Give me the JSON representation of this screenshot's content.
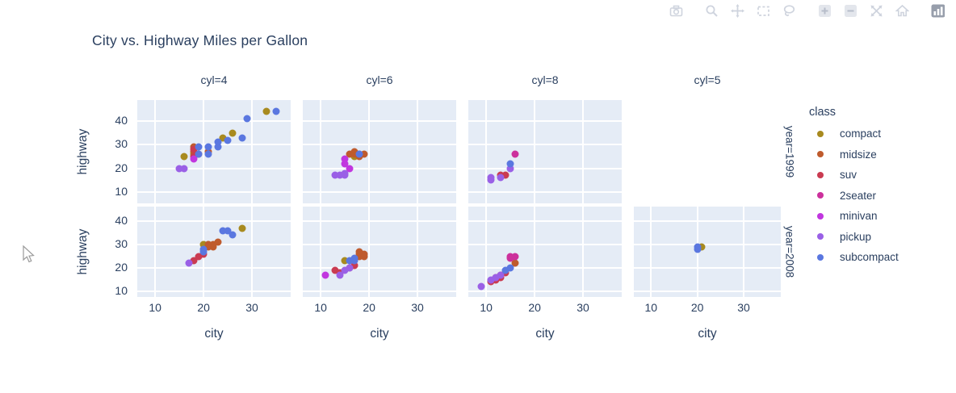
{
  "title": "City vs. Highway Miles per Gallon",
  "modebar": {
    "icons": [
      {
        "name": "camera-icon",
        "group": 0
      },
      {
        "name": "zoom-icon",
        "group": 1
      },
      {
        "name": "pan-icon",
        "group": 1
      },
      {
        "name": "box-select-icon",
        "group": 1
      },
      {
        "name": "lasso-select-icon",
        "group": 1
      },
      {
        "name": "zoom-in-icon",
        "group": 2
      },
      {
        "name": "zoom-out-icon",
        "group": 2
      },
      {
        "name": "autoscale-icon",
        "group": 2
      },
      {
        "name": "reset-axes-home-icon",
        "group": 2
      },
      {
        "name": "plotly-logo-icon",
        "group": 3
      }
    ]
  },
  "legend": {
    "title": "class",
    "items": [
      {
        "label": "compact",
        "color": "#a88a1f"
      },
      {
        "label": "midsize",
        "color": "#bf5b2d"
      },
      {
        "label": "suv",
        "color": "#ca3b51"
      },
      {
        "label": "2seater",
        "color": "#cc309c"
      },
      {
        "label": "minivan",
        "color": "#c136df"
      },
      {
        "label": "pickup",
        "color": "#9a60e6"
      },
      {
        "label": "subcompact",
        "color": "#5a77e0"
      }
    ]
  },
  "chart_data": {
    "type": "scatter",
    "title": "City vs. Highway Miles per Gallon",
    "xlabel": "city",
    "ylabel": "highway",
    "legend_title": "class",
    "legend_position": "right",
    "grid": true,
    "plot_bgcolor": "#e5ecf6",
    "text_color": "#2a3f5f",
    "x_ticks": [
      10,
      20,
      30
    ],
    "y_ticks": [
      10,
      20,
      30,
      40
    ],
    "x_range": [
      6.3,
      38
    ],
    "y_range": [
      5,
      49
    ],
    "facet_cols": [
      "cyl=4",
      "cyl=6",
      "cyl=8",
      "cyl=5"
    ],
    "facet_rows": [
      "year=1999",
      "year=2008"
    ],
    "classes": [
      "compact",
      "midsize",
      "suv",
      "2seater",
      "minivan",
      "pickup",
      "subcompact"
    ],
    "colors": {
      "compact": "#a88a1f",
      "midsize": "#bf5b2d",
      "suv": "#ca3b51",
      "2seater": "#cc309c",
      "minivan": "#c136df",
      "pickup": "#9a60e6",
      "subcompact": "#5a77e0"
    },
    "panels": [
      {
        "col": 0,
        "row": 0,
        "blank": false,
        "points": [
          [
            15,
            20,
            "pickup"
          ],
          [
            16,
            20,
            "pickup"
          ],
          [
            16,
            25,
            "compact"
          ],
          [
            18,
            26,
            "compact"
          ],
          [
            24,
            33,
            "compact"
          ],
          [
            26,
            35,
            "compact"
          ],
          [
            33,
            44,
            "compact"
          ],
          [
            18,
            29,
            "midsize"
          ],
          [
            18,
            27,
            "midsize"
          ],
          [
            19,
            26,
            "midsize"
          ],
          [
            21,
            27,
            "midsize"
          ],
          [
            18,
            28,
            "suv"
          ],
          [
            18,
            25,
            "suv"
          ],
          [
            18,
            24,
            "minivan"
          ],
          [
            19,
            29,
            "subcompact"
          ],
          [
            19,
            26,
            "subcompact"
          ],
          [
            21,
            29,
            "subcompact"
          ],
          [
            21,
            26,
            "subcompact"
          ],
          [
            23,
            31,
            "subcompact"
          ],
          [
            23,
            29,
            "subcompact"
          ],
          [
            25,
            32,
            "subcompact"
          ],
          [
            28,
            33,
            "subcompact"
          ],
          [
            29,
            41,
            "subcompact"
          ],
          [
            35,
            44,
            "subcompact"
          ]
        ]
      },
      {
        "col": 1,
        "row": 0,
        "blank": false,
        "points": [
          [
            13,
            17,
            "pickup"
          ],
          [
            14,
            17,
            "pickup"
          ],
          [
            15,
            17,
            "pickup"
          ],
          [
            15,
            18,
            "pickup"
          ],
          [
            15,
            22,
            "minivan"
          ],
          [
            15,
            24,
            "minivan"
          ],
          [
            16,
            20,
            "minivan"
          ],
          [
            16,
            26,
            "midsize"
          ],
          [
            17,
            27,
            "midsize"
          ],
          [
            17,
            26,
            "midsize"
          ],
          [
            18,
            26,
            "midsize"
          ],
          [
            19,
            26,
            "midsize"
          ],
          [
            18,
            25,
            "midsize"
          ],
          [
            17,
            25,
            "compact"
          ],
          [
            18,
            26,
            "subcompact"
          ]
        ]
      },
      {
        "col": 2,
        "row": 0,
        "blank": false,
        "points": [
          [
            11,
            15,
            "pickup"
          ],
          [
            11,
            16,
            "pickup"
          ],
          [
            13,
            16,
            "pickup"
          ],
          [
            15,
            20,
            "pickup"
          ],
          [
            13,
            17,
            "suv"
          ],
          [
            14,
            17,
            "suv"
          ],
          [
            15,
            22,
            "subcompact"
          ],
          [
            16,
            26,
            "2seater"
          ]
        ]
      },
      {
        "col": 3,
        "row": 0,
        "blank": true,
        "points": []
      },
      {
        "col": 0,
        "row": 1,
        "blank": false,
        "points": [
          [
            17,
            22,
            "pickup"
          ],
          [
            18,
            23,
            "suv"
          ],
          [
            19,
            25,
            "suv"
          ],
          [
            20,
            26,
            "suv"
          ],
          [
            20,
            30,
            "compact"
          ],
          [
            21,
            30,
            "compact"
          ],
          [
            28,
            37,
            "compact"
          ],
          [
            21,
            29,
            "midsize"
          ],
          [
            22,
            29,
            "midsize"
          ],
          [
            22,
            30,
            "midsize"
          ],
          [
            23,
            31,
            "midsize"
          ],
          [
            21,
            30,
            "midsize"
          ],
          [
            20,
            27,
            "subcompact"
          ],
          [
            20,
            28,
            "subcompact"
          ],
          [
            24,
            36,
            "subcompact"
          ],
          [
            25,
            36,
            "subcompact"
          ],
          [
            26,
            34,
            "subcompact"
          ]
        ]
      },
      {
        "col": 1,
        "row": 1,
        "blank": false,
        "points": [
          [
            11,
            17,
            "minivan"
          ],
          [
            13,
            19,
            "suv"
          ],
          [
            14,
            18,
            "suv"
          ],
          [
            16,
            20,
            "suv"
          ],
          [
            17,
            21,
            "suv"
          ],
          [
            14,
            17,
            "pickup"
          ],
          [
            15,
            19,
            "pickup"
          ],
          [
            16,
            20,
            "pickup"
          ],
          [
            15,
            23,
            "compact"
          ],
          [
            16,
            23,
            "subcompact"
          ],
          [
            17,
            23,
            "subcompact"
          ],
          [
            17,
            24,
            "subcompact"
          ],
          [
            18,
            25,
            "midsize"
          ],
          [
            18,
            26,
            "midsize"
          ],
          [
            19,
            25,
            "midsize"
          ],
          [
            19,
            26,
            "midsize"
          ],
          [
            18,
            27,
            "midsize"
          ]
        ]
      },
      {
        "col": 2,
        "row": 1,
        "blank": false,
        "points": [
          [
            9,
            12,
            "pickup"
          ],
          [
            11,
            15,
            "pickup"
          ],
          [
            12,
            16,
            "pickup"
          ],
          [
            13,
            17,
            "pickup"
          ],
          [
            11,
            14,
            "suv"
          ],
          [
            12,
            15,
            "suv"
          ],
          [
            12,
            16,
            "suv"
          ],
          [
            13,
            16,
            "suv"
          ],
          [
            13,
            17,
            "suv"
          ],
          [
            14,
            18,
            "suv"
          ],
          [
            14,
            19,
            "subcompact"
          ],
          [
            15,
            20,
            "subcompact"
          ],
          [
            15,
            24,
            "2seater"
          ],
          [
            15,
            25,
            "2seater"
          ],
          [
            16,
            25,
            "2seater"
          ],
          [
            16,
            22,
            "midsize"
          ]
        ]
      },
      {
        "col": 3,
        "row": 1,
        "blank": false,
        "points": [
          [
            20,
            28,
            "subcompact"
          ],
          [
            20,
            29,
            "subcompact"
          ],
          [
            21,
            29,
            "compact"
          ]
        ]
      }
    ]
  },
  "cursor": {
    "visible": true
  }
}
